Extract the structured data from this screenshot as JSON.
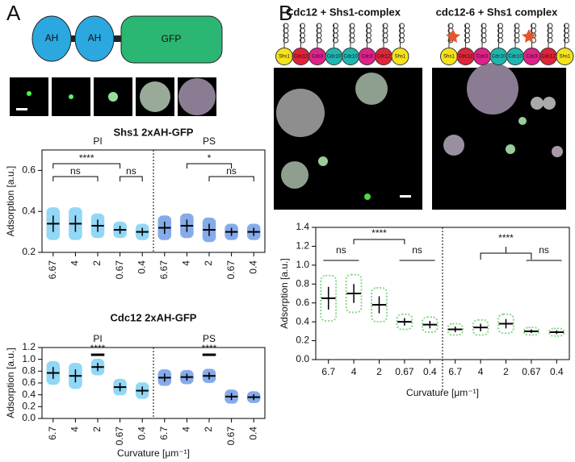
{
  "panel_labels": [
    "A",
    "B"
  ],
  "construct_domains": [
    "AH",
    "AH",
    "GFP"
  ],
  "septin_complex": [
    "Shs1",
    "Cdc12",
    "Cdc3",
    "Cdc10",
    "Cdc10",
    "Cdc3",
    "Cdc12",
    "Shs1"
  ],
  "chart_data": [
    {
      "type": "dot",
      "title": "Shs1 2xAH-GFP",
      "ylabel": "Adsorption [a.u.]",
      "categories": [
        "6.67",
        "4",
        "2",
        "0.67",
        "0.4"
      ],
      "series": [
        {
          "name": "PI",
          "color": "#38b6ef",
          "values": [
            0.34,
            0.34,
            0.33,
            0.31,
            0.3
          ],
          "errors": [
            0.04,
            0.04,
            0.03,
            0.02,
            0.02
          ]
        },
        {
          "name": "PS",
          "color": "#2266d8",
          "values": [
            0.32,
            0.33,
            0.31,
            0.3,
            0.3
          ],
          "errors": [
            0.03,
            0.03,
            0.03,
            0.02,
            0.02
          ]
        }
      ],
      "ylim": [
        0.2,
        0.7
      ],
      "yticks": [
        0.2,
        0.4,
        0.6
      ],
      "annotations": [
        "****",
        "ns",
        "ns",
        "*",
        "ns"
      ]
    },
    {
      "type": "dot",
      "title": "Cdc12 2xAH-GFP",
      "ylabel": "Adsorption [a.u.]",
      "xlabel": "Curvature [μm⁻¹]",
      "categories": [
        "6.7",
        "4",
        "2",
        "0.67",
        "0.4"
      ],
      "series": [
        {
          "name": "PI",
          "color": "#38b6ef",
          "values": [
            0.77,
            0.72,
            0.87,
            0.53,
            0.47
          ],
          "errors": [
            0.1,
            0.11,
            0.07,
            0.07,
            0.07
          ]
        },
        {
          "name": "PS",
          "color": "#2266d8",
          "values": [
            0.69,
            0.7,
            0.72,
            0.37,
            0.36
          ],
          "errors": [
            0.07,
            0.06,
            0.06,
            0.06,
            0.05
          ]
        }
      ],
      "ylim": [
        0,
        1.2
      ],
      "yticks": [
        {
          "value": 0,
          "label": "0.0"
        },
        0.2,
        0.4,
        0.6,
        0.8,
        {
          "value": 1,
          "label": "1.0"
        },
        1.2
      ],
      "annotations": [
        "****",
        "****"
      ]
    },
    {
      "type": "dot",
      "ylabel": "Adsorption [a.u.]",
      "xlabel": "Curvature [μm⁻¹]",
      "categories": [
        "6.7",
        "4",
        "2",
        "0.67",
        "0.4"
      ],
      "series": [
        {
          "name": "Cdc12 + Shs1-complex",
          "color": "#2bb52b",
          "values": [
            0.65,
            0.7,
            0.58,
            0.4,
            0.37
          ],
          "errors": [
            0.12,
            0.1,
            0.09,
            0.04,
            0.04
          ]
        },
        {
          "name": "cdc12-6 + Shs1 complex",
          "color": "#2bb52b",
          "values": [
            0.32,
            0.34,
            0.38,
            0.3,
            0.29
          ],
          "errors": [
            0.03,
            0.04,
            0.05,
            0.02,
            0.02
          ]
        }
      ],
      "ylim": [
        0,
        1.4
      ],
      "yticks": [
        {
          "value": 0,
          "label": "0.0"
        },
        0.2,
        0.4,
        0.6,
        0.8,
        {
          "value": 1,
          "label": "1.0"
        },
        1.2,
        1.4
      ],
      "annotations": [
        "****",
        "ns",
        "ns",
        "****",
        "ns"
      ]
    }
  ]
}
